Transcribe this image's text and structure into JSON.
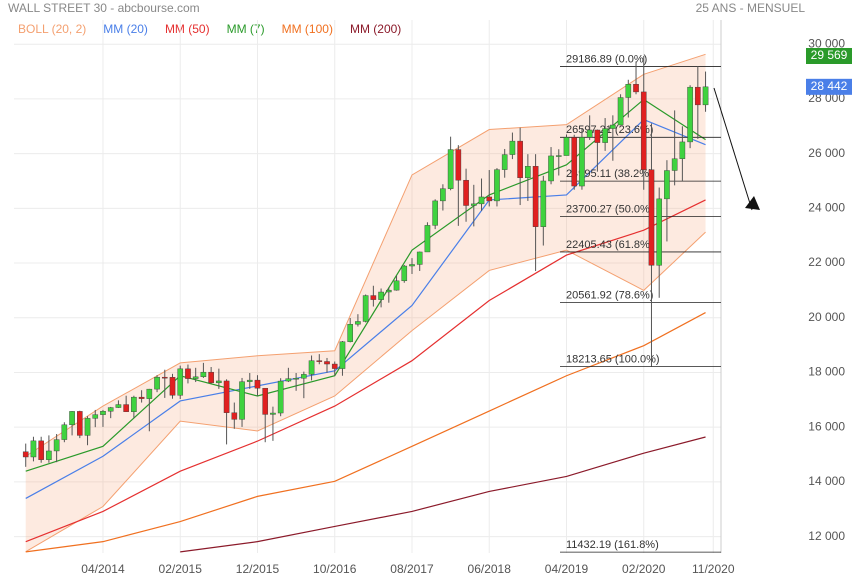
{
  "chart_data": {
    "type": "candlestick",
    "title": "WALL STREET 30 - abcbourse.com",
    "subtitle": "25 ANS - MENSUEL",
    "xlim": [
      "05/2013",
      "12/2020"
    ],
    "xticks": [
      "04/2014",
      "02/2015",
      "12/2015",
      "10/2016",
      "08/2017",
      "06/2018",
      "04/2019",
      "02/2020",
      "11/2020"
    ],
    "ylim": [
      11400,
      30300
    ],
    "yticks": [
      {
        "value": 12000,
        "label": "12 000"
      },
      {
        "value": 14000,
        "label": "14 000"
      },
      {
        "value": 16000,
        "label": "16 000"
      },
      {
        "value": 18000,
        "label": "18 000"
      },
      {
        "value": 20000,
        "label": "20 000"
      },
      {
        "value": 22000,
        "label": "22 000"
      },
      {
        "value": 24000,
        "label": "24 000"
      },
      {
        "value": 26000,
        "label": "26 000"
      },
      {
        "value": 28000,
        "label": "28 000"
      },
      {
        "value": 30000,
        "label": "30 000"
      }
    ],
    "grid": true,
    "up_color": "#3fd23f",
    "down_color": "#e02020",
    "x": [
      "06/2013",
      "07/2013",
      "08/2013",
      "09/2013",
      "10/2013",
      "11/2013",
      "12/2013",
      "01/2014",
      "02/2014",
      "03/2014",
      "04/2014",
      "05/2014",
      "06/2014",
      "07/2014",
      "08/2014",
      "09/2014",
      "10/2014",
      "11/2014",
      "12/2014",
      "01/2015",
      "02/2015",
      "03/2015",
      "04/2015",
      "05/2015",
      "06/2015",
      "07/2015",
      "08/2015",
      "09/2015",
      "10/2015",
      "11/2015",
      "12/2015",
      "01/2016",
      "02/2016",
      "03/2016",
      "04/2016",
      "05/2016",
      "06/2016",
      "07/2016",
      "08/2016",
      "09/2016",
      "10/2016",
      "11/2016",
      "12/2016",
      "01/2017",
      "02/2017",
      "03/2017",
      "04/2017",
      "05/2017",
      "06/2017",
      "07/2017",
      "08/2017",
      "09/2017",
      "10/2017",
      "11/2017",
      "12/2017",
      "01/2018",
      "02/2018",
      "03/2018",
      "04/2018",
      "05/2018",
      "06/2018",
      "07/2018",
      "08/2018",
      "09/2018",
      "10/2018",
      "11/2018",
      "12/2018",
      "01/2019",
      "02/2019",
      "03/2019",
      "04/2019",
      "05/2019",
      "06/2019",
      "07/2019",
      "08/2019",
      "09/2019",
      "10/2019",
      "11/2019",
      "12/2019",
      "01/2020",
      "02/2020",
      "03/2020",
      "04/2020",
      "05/2020",
      "06/2020",
      "07/2020",
      "08/2020",
      "09/2020",
      "10/2020"
    ],
    "open": [
      15100,
      14910,
      15500,
      14810,
      15130,
      15546,
      16086,
      16577,
      15699,
      16322,
      16458,
      16581,
      16717,
      16827,
      16563,
      17098,
      17043,
      17391,
      17828,
      17823,
      17165,
      18133,
      17776,
      17841,
      18011,
      17620,
      17690,
      16528,
      16285,
      17664,
      17720,
      17425,
      16466,
      16517,
      17685,
      17774,
      17787,
      17930,
      18432,
      18401,
      18308,
      18142,
      19124,
      19763,
      19864,
      20812,
      20663,
      20941,
      21009,
      21350,
      21891,
      21948,
      22405,
      23377,
      24272,
      24719,
      26149,
      25029,
      24103,
      24163,
      24416,
      24271,
      25415,
      25965,
      26458,
      25116,
      25538,
      23327,
      25000,
      25916,
      25929,
      26593,
      24815,
      26600,
      26864,
      26403,
      26917,
      27046,
      28051,
      28538,
      28256,
      25409,
      21917,
      24346,
      25383,
      25813,
      26428,
      28430,
      27782
    ],
    "high": [
      15400,
      15650,
      15650,
      15700,
      15750,
      16180,
      16590,
      16600,
      16400,
      16630,
      16630,
      16740,
      16980,
      17150,
      17150,
      17350,
      17400,
      17900,
      18100,
      17950,
      18250,
      18290,
      18170,
      18350,
      18200,
      18140,
      17750,
      16900,
      17800,
      17980,
      17900,
      17420,
      16750,
      17790,
      18170,
      17980,
      18030,
      18620,
      18670,
      18530,
      18400,
      19150,
      19990,
      20130,
      20850,
      21170,
      21070,
      21110,
      21540,
      21930,
      22180,
      22420,
      23490,
      24330,
      24880,
      26620,
      26310,
      25450,
      24860,
      25090,
      25400,
      25470,
      26170,
      26770,
      26950,
      25980,
      25980,
      25190,
      26240,
      26160,
      26700,
      26690,
      26910,
      27400,
      26880,
      27300,
      27400,
      28170,
      28700,
      29370,
      29569,
      27100,
      24760,
      25760,
      27580,
      27000,
      28500,
      29200,
      29000
    ],
    "low": [
      14550,
      14750,
      14700,
      14700,
      14720,
      15450,
      15700,
      15600,
      15340,
      16000,
      16010,
      16330,
      16700,
      16560,
      16330,
      16900,
      15850,
      17280,
      17070,
      17040,
      17030,
      17600,
      17650,
      17800,
      17590,
      17400,
      15370,
      15940,
      16010,
      17400,
      17140,
      15450,
      15500,
      16400,
      17650,
      17330,
      17060,
      17710,
      18300,
      17990,
      17880,
      17880,
      19100,
      19680,
      19830,
      20410,
      20380,
      20550,
      20990,
      21280,
      21600,
      21710,
      22420,
      23240,
      23920,
      24660,
      23360,
      23510,
      23340,
      23910,
      24070,
      24070,
      25120,
      25800,
      24120,
      24270,
      21710,
      22640,
      24880,
      25200,
      25990,
      24680,
      24680,
      26500,
      25340,
      26100,
      25740,
      27040,
      27320,
      28170,
      24680,
      18213,
      20730,
      22790,
      24840,
      25000,
      26200,
      26540,
      27530
    ],
    "close": [
      14910,
      15500,
      14810,
      15130,
      15546,
      16086,
      16577,
      15699,
      16322,
      16458,
      16581,
      16717,
      16827,
      16563,
      17098,
      17043,
      17391,
      17828,
      17823,
      17165,
      18133,
      17776,
      17841,
      18011,
      17620,
      17690,
      16528,
      16285,
      17664,
      17720,
      17425,
      16466,
      16517,
      17685,
      17774,
      17787,
      17930,
      18432,
      18401,
      18308,
      18142,
      19124,
      19763,
      19864,
      20812,
      20663,
      20941,
      21009,
      21350,
      21891,
      21948,
      22405,
      23377,
      24272,
      24719,
      26149,
      25029,
      24103,
      24163,
      24416,
      24271,
      25415,
      25965,
      26458,
      25116,
      25538,
      23327,
      25000,
      25916,
      25929,
      26593,
      24815,
      26600,
      26864,
      26403,
      26917,
      27046,
      28051,
      28538,
      28256,
      25409,
      21917,
      24346,
      25383,
      25813,
      26428,
      28430,
      27782,
      28442
    ],
    "series": [
      {
        "name": "BOLL (20, 2)",
        "color": "#f4a070",
        "x": [
          "06/2013",
          "04/2014",
          "02/2015",
          "12/2015",
          "10/2016",
          "08/2017",
          "06/2018",
          "04/2019",
          "02/2020",
          "10/2020"
        ],
        "upper": [
          14937,
          16770,
          18350,
          18610,
          18795,
          25220,
          26880,
          27060,
          28900,
          29630
        ],
        "lower": [
          11450,
          13100,
          16220,
          15860,
          17140,
          19530,
          21730,
          22470,
          21000,
          23130
        ]
      },
      {
        "name": "MM (20)",
        "color": "#4a7fe8",
        "x": [
          "06/2013",
          "04/2014",
          "02/2015",
          "12/2015",
          "10/2016",
          "08/2017",
          "06/2018",
          "04/2019",
          "02/2020",
          "10/2020"
        ],
        "values": [
          13395,
          14937,
          16958,
          17510,
          18060,
          20450,
          24306,
          24490,
          27245,
          26326
        ]
      },
      {
        "name": "MM (50)",
        "color": "#e53030",
        "x": [
          "06/2013",
          "04/2014",
          "02/2015",
          "12/2015",
          "10/2016",
          "08/2017",
          "06/2018",
          "04/2019",
          "02/2020",
          "10/2020"
        ],
        "values": [
          11815,
          12920,
          14390,
          15490,
          16770,
          18430,
          20630,
          22290,
          23200,
          24306
        ]
      },
      {
        "name": "MM (7)",
        "color": "#2a9a2a",
        "x": [
          "06/2013",
          "04/2014",
          "02/2015",
          "12/2015",
          "10/2016",
          "08/2017",
          "06/2018",
          "04/2019",
          "02/2020",
          "10/2020"
        ],
        "values": [
          14390,
          15300,
          17880,
          17140,
          17880,
          22470,
          24490,
          25590,
          27980,
          26510
        ]
      },
      {
        "name": "MM (100)",
        "color": "#f07020",
        "x": [
          "06/2013",
          "04/2014",
          "02/2015",
          "12/2015",
          "10/2016",
          "08/2017",
          "06/2018",
          "04/2019",
          "02/2020",
          "10/2020"
        ],
        "values": [
          11440,
          11815,
          12550,
          13470,
          14020,
          15300,
          16590,
          17880,
          18980,
          20190
        ]
      },
      {
        "name": "MM (200)",
        "color": "#8b1a2a",
        "x": [
          "02/2015",
          "12/2015",
          "10/2016",
          "08/2017",
          "06/2018",
          "04/2019",
          "02/2020",
          "10/2020"
        ],
        "values": [
          11440,
          11815,
          12370,
          12920,
          13650,
          14200,
          15050,
          15640
        ]
      }
    ],
    "fibonacci": [
      {
        "value": 29186.89,
        "label": "29186.89  (0.0%)"
      },
      {
        "value": 26597.21,
        "label": "26597.21  (23.6%)"
      },
      {
        "value": 24995.11,
        "label": "24995.11  (38.2%)"
      },
      {
        "value": 23700.27,
        "label": "23700.27  (50.0%)"
      },
      {
        "value": 22405.43,
        "label": "22405.43  (61.8%)"
      },
      {
        "value": 20561.92,
        "label": "20561.92  (78.6%)"
      },
      {
        "value": 18213.65,
        "label": "18213.65  (100.0%)"
      },
      {
        "value": 11432.19,
        "label": "11432.19  (161.8%)"
      }
    ],
    "price_labels": [
      {
        "value": 29569,
        "label": "29 569",
        "color": "#2a9a2a"
      },
      {
        "value": 28442,
        "label": "28 442",
        "color": "#4a7fe8"
      }
    ]
  }
}
